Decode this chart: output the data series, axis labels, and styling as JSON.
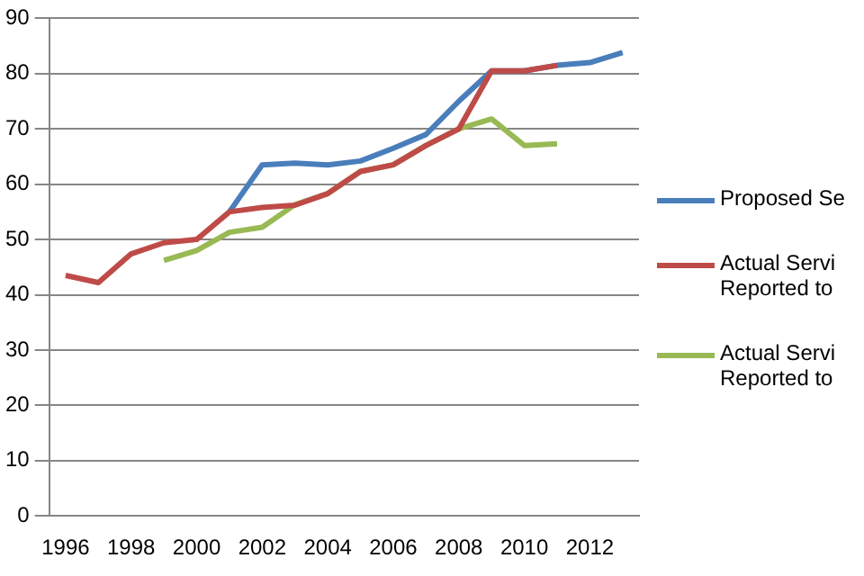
{
  "chart_data": {
    "type": "line",
    "categories": [
      "1996",
      null,
      "1998",
      null,
      "2000",
      null,
      "2002",
      null,
      "2004",
      null,
      "2006",
      null,
      "2008",
      null,
      "2010",
      null,
      "2012",
      null
    ],
    "series": [
      {
        "name": "Proposed Se",
        "color": "#4a7ebb",
        "values": [
          null,
          null,
          null,
          null,
          null,
          55,
          63.5,
          63.8,
          63.5,
          64.2,
          66.5,
          69,
          75,
          80.5,
          80.5,
          81.5,
          82,
          83.8
        ]
      },
      {
        "name": "Actual Servi Reported to",
        "color": "#be4b48",
        "values": [
          43.5,
          42.2,
          47.4,
          49.4,
          50,
          55,
          55.8,
          56.2,
          58.3,
          62.3,
          63.5,
          67,
          70,
          80.5,
          80.5,
          81.5,
          null,
          null
        ]
      },
      {
        "name": "Actual Servi Reported to",
        "color": "#98b954",
        "values": [
          null,
          null,
          null,
          46.2,
          48,
          51.3,
          52.2,
          56.3,
          58.3,
          62.3,
          63.5,
          67,
          70,
          71.8,
          67,
          67.3,
          null,
          null
        ]
      }
    ],
    "ylim": [
      0,
      90
    ],
    "yticks": [
      0,
      10,
      20,
      30,
      40,
      50,
      60,
      70,
      80,
      90
    ],
    "grid": "y",
    "legend": "right",
    "marker": "none",
    "line_style": "solid"
  }
}
